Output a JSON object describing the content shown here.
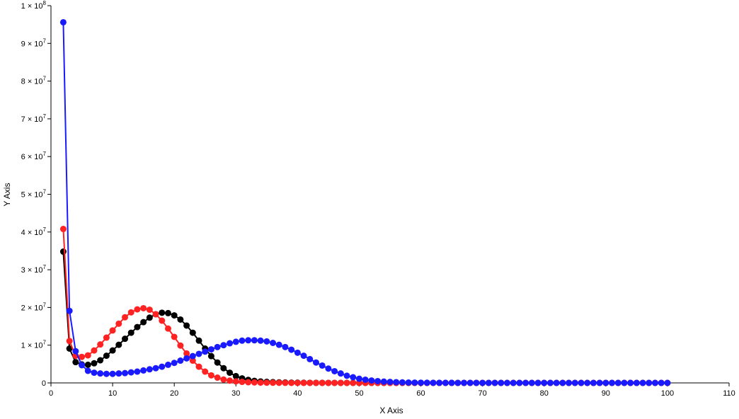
{
  "chart_data": {
    "type": "line",
    "xlabel": "X Axis",
    "ylabel": "Y Axis",
    "xlim": [
      0,
      110
    ],
    "ylim": [
      0,
      100000000
    ],
    "x_ticks": [
      "0",
      "10",
      "20",
      "30",
      "40",
      "50",
      "60",
      "70",
      "80",
      "90",
      "100",
      "110"
    ],
    "y_ticks": [
      {
        "v": 0,
        "m": "0",
        "e": ""
      },
      {
        "v": 10000000,
        "m": "1 × 10",
        "e": "7"
      },
      {
        "v": 20000000,
        "m": "2 × 10",
        "e": "7"
      },
      {
        "v": 30000000,
        "m": "3 × 10",
        "e": "7"
      },
      {
        "v": 40000000,
        "m": "4 × 10",
        "e": "7"
      },
      {
        "v": 50000000,
        "m": "5 × 10",
        "e": "7"
      },
      {
        "v": 60000000,
        "m": "6 × 10",
        "e": "7"
      },
      {
        "v": 70000000,
        "m": "7 × 10",
        "e": "7"
      },
      {
        "v": 80000000,
        "m": "8 × 10",
        "e": "7"
      },
      {
        "v": 90000000,
        "m": "9 × 10",
        "e": "7"
      },
      {
        "v": 100000000,
        "m": "1 × 10",
        "e": "8"
      }
    ],
    "grid": false,
    "legend": "none",
    "x": [
      2,
      3,
      4,
      5,
      6,
      7,
      8,
      9,
      10,
      11,
      12,
      13,
      14,
      15,
      16,
      17,
      18,
      19,
      20,
      21,
      22,
      23,
      24,
      25,
      26,
      27,
      28,
      29,
      30,
      31,
      32,
      33,
      34,
      35,
      36,
      37,
      38,
      39,
      40,
      41,
      42,
      43,
      44,
      45,
      46,
      47,
      48,
      49,
      50,
      51,
      52,
      53,
      54,
      55,
      56,
      57,
      58,
      59,
      60,
      61,
      62,
      63,
      64,
      65,
      66,
      67,
      68,
      69,
      70,
      71,
      72,
      73,
      74,
      75,
      76,
      77,
      78,
      79,
      80,
      81,
      82,
      83,
      84,
      85,
      86,
      87,
      88,
      89,
      90,
      91,
      92,
      93,
      94,
      95,
      96,
      97,
      98,
      99,
      100
    ],
    "series": [
      {
        "color": "#000000",
        "values": [
          34800000,
          9100000,
          5500000,
          4900000,
          4800000,
          5200000,
          6000000,
          7200000,
          8600000,
          10100000,
          11700000,
          13300000,
          14800000,
          16100000,
          17300000,
          18200000,
          18600000,
          18500000,
          17900000,
          16800000,
          15200000,
          13300000,
          11200000,
          9100000,
          7100000,
          5400000,
          3900000,
          2700000,
          1800000,
          1200000,
          800000,
          550000,
          380000,
          270000,
          200000,
          150000,
          110000,
          80000,
          60000,
          40000,
          30000,
          20000,
          15000,
          10000,
          8000,
          6000,
          5000,
          4000,
          3000,
          2000,
          1500,
          1000,
          800,
          600,
          500,
          400,
          300,
          200,
          150,
          100,
          80,
          60,
          50,
          40,
          30,
          20,
          15,
          10,
          8,
          6,
          5,
          4,
          3,
          2,
          1,
          1,
          1,
          1,
          1,
          0,
          0,
          0,
          0,
          0,
          0,
          0,
          0,
          0,
          0,
          0,
          0,
          0,
          0,
          0,
          0,
          0,
          0,
          0,
          0
        ]
      },
      {
        "color": "#ff2222",
        "values": [
          40800000,
          11100000,
          7200000,
          6900000,
          7300000,
          8600000,
          10200000,
          12000000,
          13900000,
          15700000,
          17400000,
          18700000,
          19500000,
          19800000,
          19400000,
          18200000,
          16500000,
          14400000,
          12200000,
          9900000,
          7800000,
          5900000,
          4300000,
          3000000,
          2000000,
          1400000,
          900000,
          600000,
          400000,
          270000,
          180000,
          120000,
          80000,
          55000,
          37000,
          25000,
          17000,
          11000,
          8000,
          5000,
          3500,
          2500,
          1700,
          1200,
          800,
          500,
          350,
          250,
          170,
          120,
          80,
          55,
          40,
          25,
          17,
          12,
          8,
          5,
          4,
          3,
          2,
          1,
          1,
          1,
          0,
          0,
          0,
          0,
          0,
          0,
          0,
          0,
          0,
          0,
          0,
          0,
          0,
          0,
          0,
          0,
          0,
          0,
          0,
          0,
          0,
          0,
          0,
          0,
          0,
          0,
          0,
          0,
          0,
          0,
          0,
          0,
          0,
          0,
          0
        ]
      },
      {
        "color": "#1a1aff",
        "values": [
          95600000,
          19100000,
          8400000,
          4700000,
          3200000,
          2700000,
          2500000,
          2400000,
          2400000,
          2500000,
          2600000,
          2800000,
          3000000,
          3300000,
          3600000,
          3900000,
          4300000,
          4800000,
          5300000,
          5900000,
          6500000,
          7100000,
          7700000,
          8300000,
          8900000,
          9500000,
          10000000,
          10500000,
          10900000,
          11200000,
          11300000,
          11300000,
          11200000,
          11000000,
          10600000,
          10100000,
          9500000,
          8800000,
          8000000,
          7200000,
          6300000,
          5400000,
          4600000,
          3800000,
          3100000,
          2500000,
          1900000,
          1500000,
          1100000,
          850000,
          640000,
          480000,
          350000,
          260000,
          190000,
          140000,
          100000,
          75000,
          55000,
          40000,
          30000,
          22000,
          16000,
          12000,
          9000,
          6500,
          4800,
          3500,
          2600,
          1900,
          1400,
          1000,
          750,
          550,
          400,
          300,
          220,
          160,
          120,
          90,
          65,
          48,
          35,
          26,
          19,
          14,
          10,
          7,
          5,
          4,
          3,
          2,
          2,
          1,
          1,
          1,
          1,
          1,
          1
        ]
      }
    ]
  }
}
